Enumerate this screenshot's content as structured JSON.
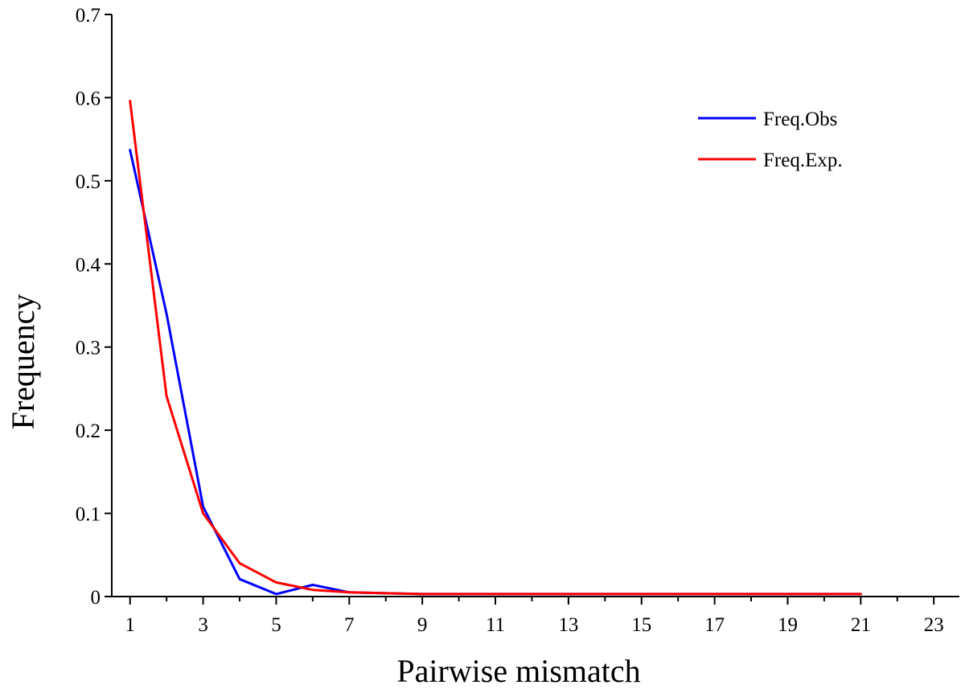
{
  "chart_data": {
    "type": "line",
    "title": "",
    "xlabel": "Pairwise mismatch",
    "ylabel": "Frequency",
    "xlim": [
      0.5,
      23.7
    ],
    "ylim": [
      0,
      0.7
    ],
    "x_ticks": [
      "1",
      "3",
      "5",
      "7",
      "9",
      "11",
      "13",
      "15",
      "17",
      "19",
      "21",
      "23"
    ],
    "x_tick_values": [
      1,
      3,
      5,
      7,
      9,
      11,
      13,
      15,
      17,
      19,
      21,
      23
    ],
    "x_minor_ticks": [
      2,
      4,
      6,
      8,
      10,
      12,
      14,
      16,
      18,
      20,
      22
    ],
    "y_ticks": [
      "0",
      "0.1",
      "0.2",
      "0.3",
      "0.4",
      "0.5",
      "0.6",
      "0.7"
    ],
    "y_tick_values": [
      0,
      0.1,
      0.2,
      0.3,
      0.4,
      0.5,
      0.6,
      0.7
    ],
    "grid": false,
    "legend_position": "top-right",
    "series": [
      {
        "name": "Freq.Obs",
        "color": "#0000ff",
        "x": [
          1,
          2,
          3,
          4,
          5,
          6,
          7,
          8,
          9,
          10,
          11,
          12,
          13,
          14,
          15,
          16,
          17,
          18,
          19,
          20,
          21
        ],
        "values": [
          0.537,
          0.34,
          0.108,
          0.021,
          0.003,
          0.014,
          0.005,
          0.004,
          0.003,
          0.003,
          0.003,
          0.003,
          0.003,
          0.003,
          0.003,
          0.003,
          0.003,
          0.003,
          0.003,
          0.003,
          0.003
        ]
      },
      {
        "name": "Freq.Exp.",
        "color": "#ff0000",
        "x": [
          1,
          2,
          3,
          4,
          5,
          6,
          7,
          8,
          9,
          10,
          11,
          12,
          13,
          14,
          15,
          16,
          17,
          18,
          19,
          20,
          21
        ],
        "values": [
          0.596,
          0.241,
          0.1,
          0.04,
          0.017,
          0.008,
          0.005,
          0.004,
          0.003,
          0.003,
          0.003,
          0.003,
          0.003,
          0.003,
          0.003,
          0.003,
          0.003,
          0.003,
          0.003,
          0.003,
          0.003
        ]
      }
    ]
  }
}
